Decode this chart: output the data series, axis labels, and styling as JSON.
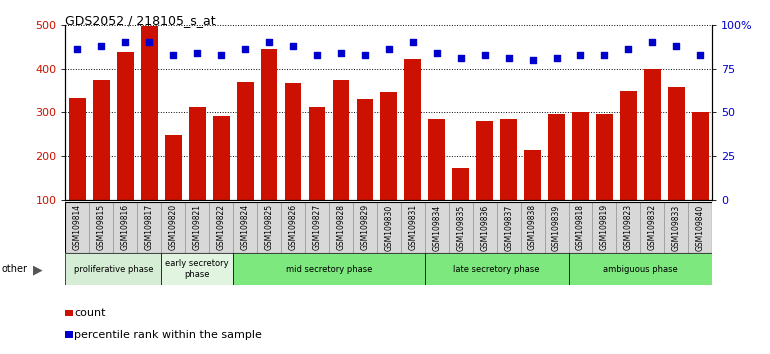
{
  "title": "GDS2052 / 218105_s_at",
  "samples": [
    "GSM109814",
    "GSM109815",
    "GSM109816",
    "GSM109817",
    "GSM109820",
    "GSM109821",
    "GSM109822",
    "GSM109824",
    "GSM109825",
    "GSM109826",
    "GSM109827",
    "GSM109828",
    "GSM109829",
    "GSM109830",
    "GSM109831",
    "GSM109834",
    "GSM109835",
    "GSM109836",
    "GSM109837",
    "GSM109838",
    "GSM109839",
    "GSM109818",
    "GSM109819",
    "GSM109823",
    "GSM109832",
    "GSM109833",
    "GSM109840"
  ],
  "counts": [
    332,
    374,
    437,
    497,
    248,
    313,
    291,
    370,
    445,
    366,
    312,
    373,
    331,
    347,
    422,
    284,
    173,
    280,
    285,
    215,
    296,
    300,
    296,
    348,
    399,
    358,
    302
  ],
  "percentiles": [
    86,
    88,
    90,
    90,
    83,
    84,
    83,
    86,
    90,
    88,
    83,
    84,
    83,
    86,
    90,
    84,
    81,
    83,
    81,
    80,
    81,
    83,
    83,
    86,
    90,
    88,
    83
  ],
  "bar_color": "#CC1100",
  "dot_color": "#0000CC",
  "ylim_left": [
    100,
    500
  ],
  "ylim_right": [
    0,
    100
  ],
  "yticks_left": [
    100,
    200,
    300,
    400,
    500
  ],
  "yticks_right": [
    0,
    25,
    50,
    75,
    100
  ],
  "ytick_labels_right": [
    "0",
    "25",
    "50",
    "75",
    "100%"
  ],
  "phases": [
    {
      "label": "proliferative phase",
      "start": 0,
      "end": 3,
      "color": "#d4edd4"
    },
    {
      "label": "early secretory\nphase",
      "start": 4,
      "end": 6,
      "color": "#e0f4e0"
    },
    {
      "label": "mid secretory phase",
      "start": 7,
      "end": 14,
      "color": "#7de87d"
    },
    {
      "label": "late secretory phase",
      "start": 15,
      "end": 20,
      "color": "#7de87d"
    },
    {
      "label": "ambiguous phase",
      "start": 21,
      "end": 26,
      "color": "#7de87d"
    }
  ],
  "legend_count": "count",
  "legend_pct": "percentile rank within the sample",
  "other_text": "other",
  "plot_bg": "#ffffff",
  "tick_area_bg": "#d8d8d8",
  "fig_bg": "#ffffff"
}
